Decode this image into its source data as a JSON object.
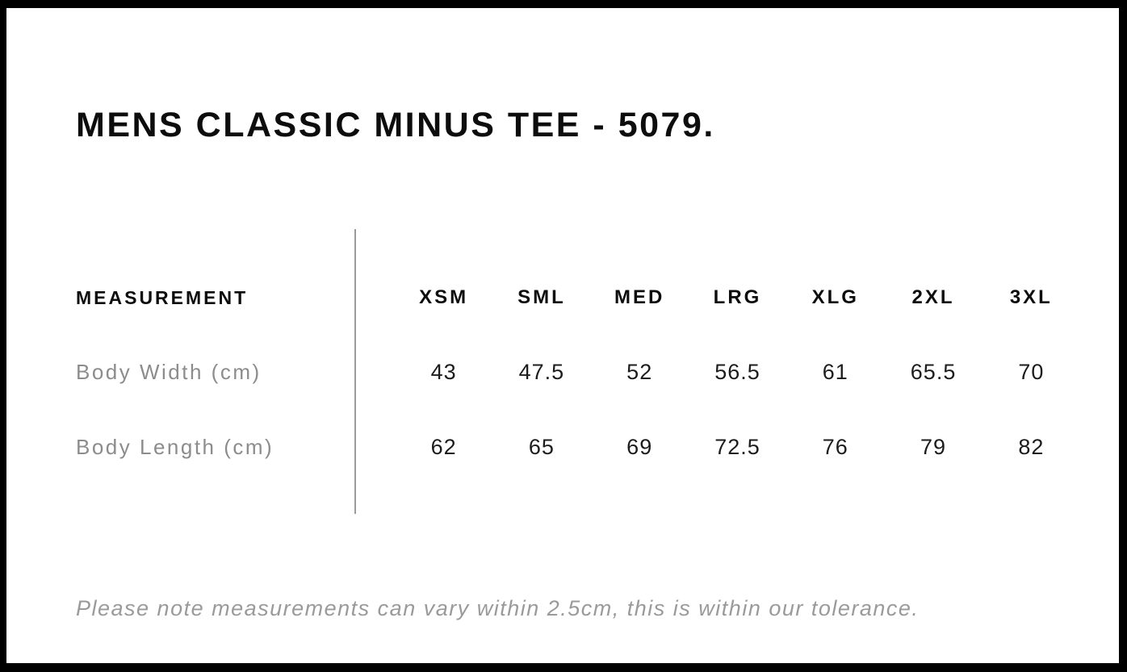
{
  "page": {
    "title": "MENS CLASSIC MINUS TEE - 5079."
  },
  "size_chart": {
    "measurement_header": "MEASUREMENT",
    "sizes": [
      "XSM",
      "SML",
      "MED",
      "LRG",
      "XLG",
      "2XL",
      "3XL"
    ],
    "rows": [
      {
        "label": "Body Width (cm)",
        "values": [
          "43",
          "47.5",
          "52",
          "56.5",
          "61",
          "65.5",
          "70"
        ]
      },
      {
        "label": "Body Length (cm)",
        "values": [
          "62",
          "65",
          "69",
          "72.5",
          "76",
          "79",
          "82"
        ]
      }
    ],
    "note": "Please note measurements can vary within 2.5cm, this is within our tolerance."
  },
  "colors": {
    "page_border": "#000000",
    "background": "#ffffff",
    "heading_text": "#0d0d0d",
    "value_text": "#1c1c1c",
    "label_gray": "#8c8c8c",
    "note_gray": "#9a9a9a",
    "divider_gray": "#9b9b9b"
  },
  "chart_data": {
    "type": "table",
    "title": "MENS CLASSIC MINUS TEE - 5079.",
    "columns": [
      "MEASUREMENT",
      "XSM",
      "SML",
      "MED",
      "LRG",
      "XLG",
      "2XL",
      "3XL"
    ],
    "rows": [
      [
        "Body Width (cm)",
        43,
        47.5,
        52,
        56.5,
        61,
        65.5,
        70
      ],
      [
        "Body Length (cm)",
        62,
        65,
        69,
        72.5,
        76,
        79,
        82
      ]
    ],
    "footnote": "Please note measurements can vary within 2.5cm, this is within our tolerance."
  }
}
